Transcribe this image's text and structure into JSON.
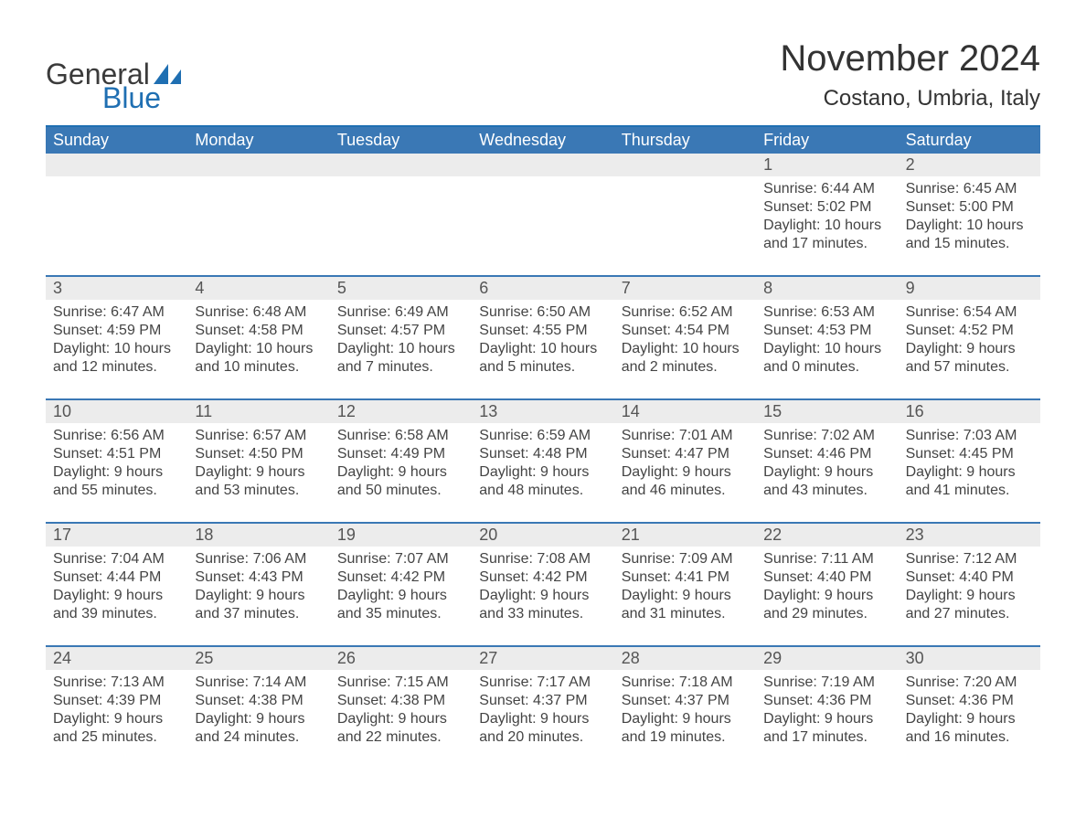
{
  "brand": {
    "word1": "General",
    "word2": "Blue",
    "word1_color": "#3b3b3b",
    "word2_color": "#1f6fb2",
    "icon_color": "#1f6fb2"
  },
  "header": {
    "month_title": "November 2024",
    "location": "Costano, Umbria, Italy"
  },
  "colors": {
    "header_bar": "#3a78b5",
    "week_divider": "#3a78b5",
    "daynum_bg": "#ececec",
    "background": "#ffffff",
    "text": "#333333"
  },
  "fonts": {
    "month_title_pt": 40,
    "location_pt": 24,
    "weekday_pt": 18,
    "daynum_pt": 18,
    "body_pt": 16
  },
  "weekdays": [
    "Sunday",
    "Monday",
    "Tuesday",
    "Wednesday",
    "Thursday",
    "Friday",
    "Saturday"
  ],
  "weeks": [
    [
      {
        "day": "",
        "sunrise": "",
        "sunset": "",
        "daylight": ""
      },
      {
        "day": "",
        "sunrise": "",
        "sunset": "",
        "daylight": ""
      },
      {
        "day": "",
        "sunrise": "",
        "sunset": "",
        "daylight": ""
      },
      {
        "day": "",
        "sunrise": "",
        "sunset": "",
        "daylight": ""
      },
      {
        "day": "",
        "sunrise": "",
        "sunset": "",
        "daylight": ""
      },
      {
        "day": "1",
        "sunrise": "Sunrise: 6:44 AM",
        "sunset": "Sunset: 5:02 PM",
        "daylight": "Daylight: 10 hours and 17 minutes."
      },
      {
        "day": "2",
        "sunrise": "Sunrise: 6:45 AM",
        "sunset": "Sunset: 5:00 PM",
        "daylight": "Daylight: 10 hours and 15 minutes."
      }
    ],
    [
      {
        "day": "3",
        "sunrise": "Sunrise: 6:47 AM",
        "sunset": "Sunset: 4:59 PM",
        "daylight": "Daylight: 10 hours and 12 minutes."
      },
      {
        "day": "4",
        "sunrise": "Sunrise: 6:48 AM",
        "sunset": "Sunset: 4:58 PM",
        "daylight": "Daylight: 10 hours and 10 minutes."
      },
      {
        "day": "5",
        "sunrise": "Sunrise: 6:49 AM",
        "sunset": "Sunset: 4:57 PM",
        "daylight": "Daylight: 10 hours and 7 minutes."
      },
      {
        "day": "6",
        "sunrise": "Sunrise: 6:50 AM",
        "sunset": "Sunset: 4:55 PM",
        "daylight": "Daylight: 10 hours and 5 minutes."
      },
      {
        "day": "7",
        "sunrise": "Sunrise: 6:52 AM",
        "sunset": "Sunset: 4:54 PM",
        "daylight": "Daylight: 10 hours and 2 minutes."
      },
      {
        "day": "8",
        "sunrise": "Sunrise: 6:53 AM",
        "sunset": "Sunset: 4:53 PM",
        "daylight": "Daylight: 10 hours and 0 minutes."
      },
      {
        "day": "9",
        "sunrise": "Sunrise: 6:54 AM",
        "sunset": "Sunset: 4:52 PM",
        "daylight": "Daylight: 9 hours and 57 minutes."
      }
    ],
    [
      {
        "day": "10",
        "sunrise": "Sunrise: 6:56 AM",
        "sunset": "Sunset: 4:51 PM",
        "daylight": "Daylight: 9 hours and 55 minutes."
      },
      {
        "day": "11",
        "sunrise": "Sunrise: 6:57 AM",
        "sunset": "Sunset: 4:50 PM",
        "daylight": "Daylight: 9 hours and 53 minutes."
      },
      {
        "day": "12",
        "sunrise": "Sunrise: 6:58 AM",
        "sunset": "Sunset: 4:49 PM",
        "daylight": "Daylight: 9 hours and 50 minutes."
      },
      {
        "day": "13",
        "sunrise": "Sunrise: 6:59 AM",
        "sunset": "Sunset: 4:48 PM",
        "daylight": "Daylight: 9 hours and 48 minutes."
      },
      {
        "day": "14",
        "sunrise": "Sunrise: 7:01 AM",
        "sunset": "Sunset: 4:47 PM",
        "daylight": "Daylight: 9 hours and 46 minutes."
      },
      {
        "day": "15",
        "sunrise": "Sunrise: 7:02 AM",
        "sunset": "Sunset: 4:46 PM",
        "daylight": "Daylight: 9 hours and 43 minutes."
      },
      {
        "day": "16",
        "sunrise": "Sunrise: 7:03 AM",
        "sunset": "Sunset: 4:45 PM",
        "daylight": "Daylight: 9 hours and 41 minutes."
      }
    ],
    [
      {
        "day": "17",
        "sunrise": "Sunrise: 7:04 AM",
        "sunset": "Sunset: 4:44 PM",
        "daylight": "Daylight: 9 hours and 39 minutes."
      },
      {
        "day": "18",
        "sunrise": "Sunrise: 7:06 AM",
        "sunset": "Sunset: 4:43 PM",
        "daylight": "Daylight: 9 hours and 37 minutes."
      },
      {
        "day": "19",
        "sunrise": "Sunrise: 7:07 AM",
        "sunset": "Sunset: 4:42 PM",
        "daylight": "Daylight: 9 hours and 35 minutes."
      },
      {
        "day": "20",
        "sunrise": "Sunrise: 7:08 AM",
        "sunset": "Sunset: 4:42 PM",
        "daylight": "Daylight: 9 hours and 33 minutes."
      },
      {
        "day": "21",
        "sunrise": "Sunrise: 7:09 AM",
        "sunset": "Sunset: 4:41 PM",
        "daylight": "Daylight: 9 hours and 31 minutes."
      },
      {
        "day": "22",
        "sunrise": "Sunrise: 7:11 AM",
        "sunset": "Sunset: 4:40 PM",
        "daylight": "Daylight: 9 hours and 29 minutes."
      },
      {
        "day": "23",
        "sunrise": "Sunrise: 7:12 AM",
        "sunset": "Sunset: 4:40 PM",
        "daylight": "Daylight: 9 hours and 27 minutes."
      }
    ],
    [
      {
        "day": "24",
        "sunrise": "Sunrise: 7:13 AM",
        "sunset": "Sunset: 4:39 PM",
        "daylight": "Daylight: 9 hours and 25 minutes."
      },
      {
        "day": "25",
        "sunrise": "Sunrise: 7:14 AM",
        "sunset": "Sunset: 4:38 PM",
        "daylight": "Daylight: 9 hours and 24 minutes."
      },
      {
        "day": "26",
        "sunrise": "Sunrise: 7:15 AM",
        "sunset": "Sunset: 4:38 PM",
        "daylight": "Daylight: 9 hours and 22 minutes."
      },
      {
        "day": "27",
        "sunrise": "Sunrise: 7:17 AM",
        "sunset": "Sunset: 4:37 PM",
        "daylight": "Daylight: 9 hours and 20 minutes."
      },
      {
        "day": "28",
        "sunrise": "Sunrise: 7:18 AM",
        "sunset": "Sunset: 4:37 PM",
        "daylight": "Daylight: 9 hours and 19 minutes."
      },
      {
        "day": "29",
        "sunrise": "Sunrise: 7:19 AM",
        "sunset": "Sunset: 4:36 PM",
        "daylight": "Daylight: 9 hours and 17 minutes."
      },
      {
        "day": "30",
        "sunrise": "Sunrise: 7:20 AM",
        "sunset": "Sunset: 4:36 PM",
        "daylight": "Daylight: 9 hours and 16 minutes."
      }
    ]
  ]
}
